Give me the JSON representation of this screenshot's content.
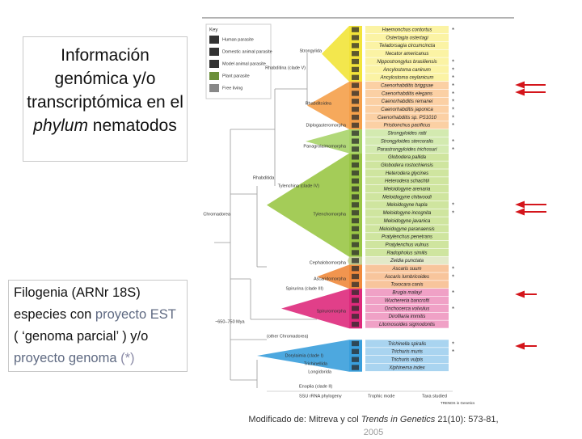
{
  "title_box": {
    "segments": [
      {
        "text": "Información genómica y/o transcriptómica en el "
      },
      {
        "text": "phylum",
        "style": "italic"
      },
      {
        "text": " nematodos"
      }
    ]
  },
  "legend_box": {
    "segments": [
      {
        "text": "Filogenia (ARNr 18S) especies con "
      },
      {
        "text": "proyecto EST",
        "color": "#5f6a82"
      },
      {
        "text": " ( ‘genoma parcial’ ) y/o "
      },
      {
        "text": "proyecto genoma",
        "color": "#5f6a82"
      },
      {
        "text": " (*)",
        "color": "#8a8aa6"
      }
    ]
  },
  "figure": {
    "key": {
      "title": "Key",
      "items": [
        {
          "label": "Human parasite"
        },
        {
          "label": "Domestic animal parasite"
        },
        {
          "label": "Model animal parasite"
        },
        {
          "label": "Plant parasite"
        },
        {
          "label": "Free living"
        }
      ]
    },
    "groups": [
      {
        "band_color": "#f2e43a",
        "cell_color": "#fbf3a4",
        "species": [
          {
            "name": "Haemonchus contortus",
            "note": "*"
          },
          {
            "name": "Ostertagia ostertagi"
          },
          {
            "name": "Teladorsagia circumcincta"
          },
          {
            "name": "Necator americanus"
          },
          {
            "name": "Nippostrongylus brasiliensis",
            "note": "*"
          },
          {
            "name": "Ancylostoma caninum",
            "note": "*"
          },
          {
            "name": "Ancylostoma ceylanicum",
            "note": "*"
          }
        ]
      },
      {
        "band_color": "#f5a04a",
        "cell_color": "#fbd0a4",
        "species": [
          {
            "name": "Caenorhabditis briggsae",
            "note": "*"
          },
          {
            "name": "Caenorhabditis elegans",
            "note": "*"
          },
          {
            "name": "Caenorhabditis remanei",
            "note": "*"
          },
          {
            "name": "Caenorhabditis japonica",
            "note": "*"
          },
          {
            "name": "Caenorhabditis sp. PS1010",
            "note": "*"
          },
          {
            "name": "Pristionchus pacificus",
            "note": "*"
          }
        ]
      },
      {
        "band_color": "#a9d46a",
        "cell_color": "#d3eab0",
        "species": [
          {
            "name": "Strongyloides ratti"
          },
          {
            "name": "Strongyloides stercoralis",
            "note": "*"
          },
          {
            "name": "Parastrongyloides trichosuri",
            "note": "*"
          }
        ]
      },
      {
        "band_color": "#9ac646",
        "cell_color": "#cfe59f",
        "species": [
          {
            "name": "Globodera pallida"
          },
          {
            "name": "Globodera rostochiensis"
          },
          {
            "name": "Heterodera glycines"
          },
          {
            "name": "Heterodera schachtii"
          },
          {
            "name": "Meloidogyne arenaria"
          },
          {
            "name": "Meloidogyne chitwoodi"
          },
          {
            "name": "Meloidogyne hapla",
            "note": "*"
          },
          {
            "name": "Meloidogyne incognita",
            "note": "*"
          },
          {
            "name": "Meloidogyne javanica"
          },
          {
            "name": "Meloidogyne paranaensis"
          },
          {
            "name": "Pratylenchus penetrans"
          },
          {
            "name": "Pratylenchus vulnus"
          },
          {
            "name": "Radopholus similis"
          }
        ]
      },
      {
        "band_color": "#c3cf95",
        "cell_color": "#e3e9c8",
        "species": [
          {
            "name": "Zeldia punctata"
          }
        ]
      },
      {
        "band_color": "#f08a3c",
        "cell_color": "#f8c59c",
        "species": [
          {
            "name": "Ascaris suum",
            "note": "*"
          },
          {
            "name": "Ascaris lumbricoides",
            "note": "*"
          },
          {
            "name": "Toxocara canis"
          }
        ]
      },
      {
        "band_color": "#de2a7c",
        "cell_color": "#f0a1c6",
        "species": [
          {
            "name": "Brugia malayi",
            "note": "*"
          },
          {
            "name": "Wuchereria bancrofti"
          },
          {
            "name": "Onchocerca volvulus",
            "note": "*"
          },
          {
            "name": "Dirofilaria immitis"
          },
          {
            "name": "Litomosoides sigmodontis"
          }
        ]
      },
      {
        "band_color": "#3a9fdc",
        "cell_color": "#a9d4f0",
        "species": [
          {
            "name": "Trichinella spiralis",
            "note": "*"
          },
          {
            "name": "Trichuris muris",
            "note": "*"
          },
          {
            "name": "Trichuris vulpis"
          },
          {
            "name": "Xiphinema index"
          }
        ]
      }
    ],
    "clades": [
      "Strongylida",
      "Rhabditina (clade V)",
      "Rhabditoidea",
      "Diplogasteromorpha",
      "Panagrolaimomorpha",
      "Rhabditida",
      "Tylenchina (clade IV)",
      "Tylenchomorpha",
      "Chromadorea",
      "Cephalobomorpha",
      "Ascaridomorpha",
      "Spirurina (clade III)",
      "Spiruromorpha",
      "~650–750 Mya",
      "(other Chromadorea)",
      "Dorylaimia (clade I)",
      "Trichinellida",
      "Longidorida",
      "Enoplia (clade II)"
    ],
    "footer": [
      "SSU rRNA phylogeny",
      "Trophic mode",
      "Taxa studied",
      "TRENDS in Genetics"
    ]
  },
  "caption": {
    "segments": [
      {
        "text": "Modificado de: Mitreva y col "
      },
      {
        "text": "Trends in Genetics",
        "style": "italic"
      },
      {
        "text": " 21(10): 573-81, "
      },
      {
        "text": "2005",
        "color": "#9a9a9a"
      }
    ]
  }
}
